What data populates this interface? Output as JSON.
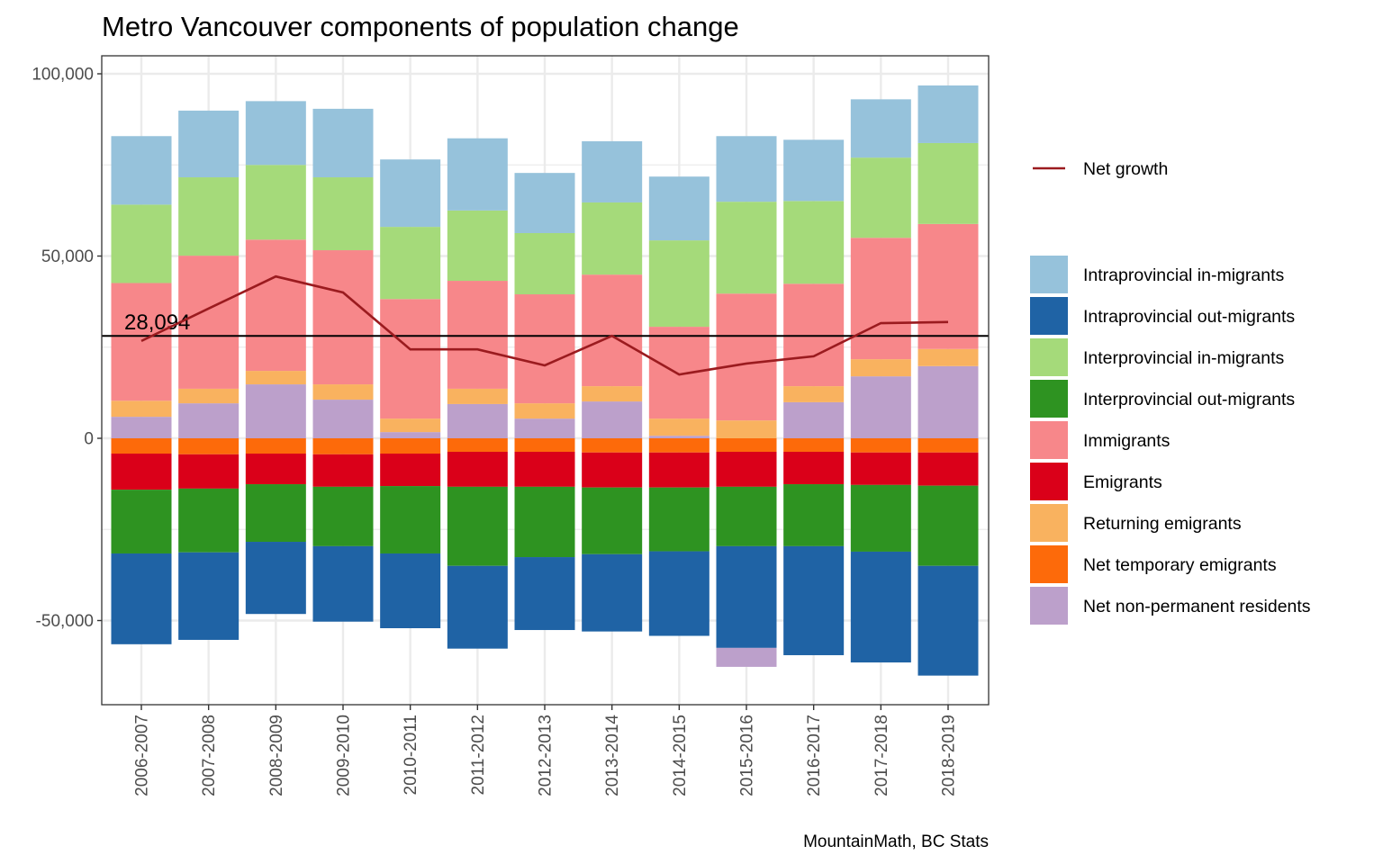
{
  "chart_data": {
    "type": "bar",
    "subtype": "stacked-diverging-with-line",
    "title": "Metro Vancouver components of population change",
    "caption": "MountainMath, BC Stats",
    "xlabel": "",
    "ylabel": "",
    "ylim": [
      -73000,
      105000
    ],
    "y_ticks": [
      -50000,
      0,
      50000,
      100000
    ],
    "y_tick_labels": [
      "-50,000",
      "0",
      "50,000",
      "100,000"
    ],
    "grid": true,
    "legend_position": "right",
    "categories": [
      "2006-2007",
      "2007-2008",
      "2008-2009",
      "2009-2010",
      "2010-2011",
      "2011-2012",
      "2012-2013",
      "2013-2014",
      "2014-2015",
      "2015-2016",
      "2016-2017",
      "2017-2018",
      "2018-2019"
    ],
    "series": [
      {
        "name": "Intraprovincial in-migrants",
        "color": "#96c2db",
        "values": [
          18800,
          18300,
          17500,
          18800,
          18500,
          19800,
          16500,
          16800,
          17500,
          18000,
          16800,
          16000,
          15800
        ]
      },
      {
        "name": "Intraprovincial out-migrants",
        "color": "#1f63a5",
        "values": [
          -24900,
          -24000,
          -19800,
          -20700,
          -20500,
          -22700,
          -20000,
          -21200,
          -23200,
          -27900,
          -29900,
          -30400,
          -30100
        ]
      },
      {
        "name": "Interprovincial in-migrants",
        "color": "#a5da7a",
        "values": [
          21500,
          21500,
          20500,
          20000,
          19800,
          19300,
          16800,
          19800,
          23700,
          25200,
          22700,
          22000,
          22200
        ]
      },
      {
        "name": "Interprovincial out-migrants",
        "color": "#2e9321",
        "values": [
          -17500,
          -17500,
          -15800,
          -16300,
          -18500,
          -21700,
          -19300,
          -18300,
          -17500,
          -16300,
          -17000,
          -18300,
          -22000
        ]
      },
      {
        "name": "Immigrants",
        "color": "#f7878a",
        "values": [
          32300,
          36500,
          36000,
          36800,
          32800,
          29600,
          29900,
          30600,
          25200,
          34800,
          28100,
          33300,
          34300
        ]
      },
      {
        "name": "Emigrants",
        "color": "#da0019",
        "values": [
          -9900,
          -9400,
          -8400,
          -8900,
          -8900,
          -9600,
          -9600,
          -9600,
          -9600,
          -9600,
          -8900,
          -8900,
          -9100
        ]
      },
      {
        "name": "Returning emigrants",
        "color": "#f9b25f",
        "values": [
          4400,
          4000,
          3700,
          4200,
          3700,
          4200,
          4200,
          4200,
          4700,
          4900,
          4400,
          4700,
          4700
        ]
      },
      {
        "name": "Net temporary emigrants",
        "color": "#fd6a0a",
        "values": [
          -4200,
          -4400,
          -4200,
          -4400,
          -4200,
          -3700,
          -3700,
          -3900,
          -3900,
          -3700,
          -3700,
          -3900,
          -3900
        ]
      },
      {
        "name": "Net non-permanent residents",
        "color": "#bca0cb",
        "values": [
          5900,
          9600,
          14800,
          10600,
          1700,
          9400,
          5400,
          10100,
          700,
          -5200,
          9900,
          17000,
          19800
        ]
      }
    ],
    "line_series": {
      "name": "Net growth",
      "color": "#9b1b1f",
      "values": [
        26700,
        35600,
        44400,
        40000,
        24400,
        24400,
        20000,
        28100,
        17500,
        20500,
        22500,
        31600,
        31900
      ]
    },
    "reference_line": {
      "value": 28094,
      "label": "28,094",
      "color": "#000000"
    },
    "stack_order_positive": [
      "Net non-permanent residents",
      "Returning emigrants",
      "Immigrants",
      "Interprovincial in-migrants",
      "Intraprovincial in-migrants"
    ],
    "stack_order_negative": [
      "Net temporary emigrants",
      "Emigrants",
      "Interprovincial out-migrants",
      "Intraprovincial out-migrants",
      "Net non-permanent residents"
    ],
    "legend_order": [
      "Intraprovincial in-migrants",
      "Intraprovincial out-migrants",
      "Interprovincial in-migrants",
      "Interprovincial out-migrants",
      "Immigrants",
      "Emigrants",
      "Returning emigrants",
      "Net temporary emigrants",
      "Net non-permanent residents"
    ]
  }
}
